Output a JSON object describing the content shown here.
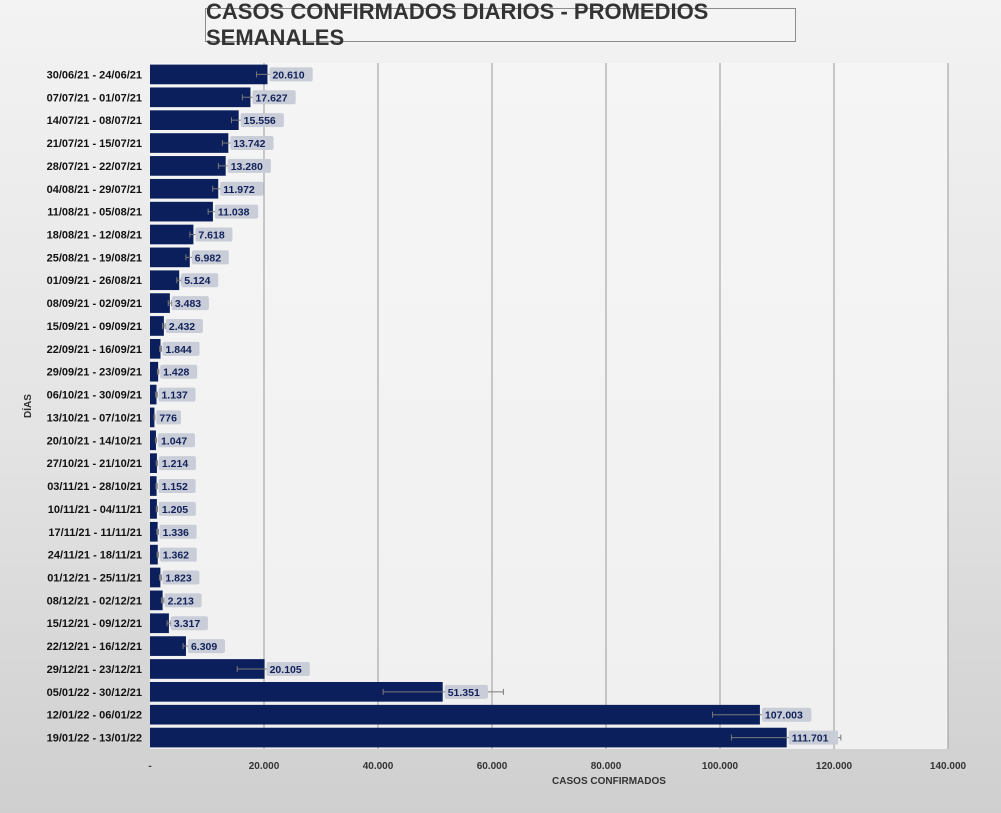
{
  "chart_data": {
    "type": "bar",
    "orientation": "horizontal",
    "title": "CASOS CONFIRMADOS DIARIOS - PROMEDIOS SEMANALES",
    "xlabel": "CASOS CONFIRMADOS",
    "ylabel": "DÍAS",
    "xlim": [
      0,
      140000
    ],
    "xticks": [
      0,
      20000,
      40000,
      60000,
      80000,
      100000,
      120000,
      140000
    ],
    "xtick_labels": [
      "-",
      "20.000",
      "40.000",
      "60.000",
      "80.000",
      "100.000",
      "120.000",
      "140.000"
    ],
    "grid": "vertical",
    "bar_color": "#0b1f5c",
    "categories": [
      "30/06/21 - 24/06/21",
      "07/07/21 - 01/07/21",
      "14/07/21 - 08/07/21",
      "21/07/21 - 15/07/21",
      "28/07/21 - 22/07/21",
      "04/08/21 - 29/07/21",
      "11/08/21 - 05/08/21",
      "18/08/21 - 12/08/21",
      "25/08/21 - 19/08/21",
      "01/09/21 - 26/08/21",
      "08/09/21 - 02/09/21",
      "15/09/21 - 09/09/21",
      "22/09/21 - 16/09/21",
      "29/09/21 - 23/09/21",
      "06/10/21 - 30/09/21",
      "13/10/21 - 07/10/21",
      "20/10/21 - 14/10/21",
      "27/10/21 - 21/10/21",
      "03/11/21 - 28/10/21",
      "10/11/21 - 04/11/21",
      "17/11/21 - 11/11/21",
      "24/11/21 - 18/11/21",
      "01/12/21 - 25/11/21",
      "08/12/21 - 02/12/21",
      "15/12/21 - 09/12/21",
      "22/12/21 - 16/12/21",
      "29/12/21 - 23/12/21",
      "05/01/22 - 30/12/21",
      "12/01/22 - 06/01/22",
      "19/01/22 - 13/01/22"
    ],
    "values": [
      20610,
      17627,
      15556,
      13742,
      13280,
      11972,
      11038,
      7618,
      6982,
      5124,
      3483,
      2432,
      1844,
      1428,
      1137,
      776,
      1047,
      1214,
      1152,
      1205,
      1336,
      1362,
      1823,
      2213,
      3317,
      6309,
      20105,
      51351,
      107003,
      111701
    ],
    "value_labels": [
      "20.610",
      "17.627",
      "15.556",
      "13.742",
      "13.280",
      "11.972",
      "11.038",
      "7.618",
      "6.982",
      "5.124",
      "3.483",
      "2.432",
      "1.844",
      "1.428",
      "1.137",
      "776",
      "1.047",
      "1.214",
      "1.152",
      "1.205",
      "1.336",
      "1.362",
      "1.823",
      "2.213",
      "3.317",
      "6.309",
      "20.105",
      "51.351",
      "107.003",
      "111.701"
    ],
    "error_low": [
      18700,
      16200,
      14300,
      12700,
      12000,
      11000,
      10200,
      7000,
      6300,
      4700,
      3200,
      2200,
      1700,
      1300,
      1000,
      700,
      950,
      1100,
      1050,
      1100,
      1200,
      1250,
      1650,
      2000,
      3000,
      5800,
      15300,
      40900,
      98700,
      102000
    ],
    "error_high": [
      22400,
      19000,
      16800,
      14700,
      14500,
      12900,
      11900,
      8200,
      7600,
      5500,
      3800,
      2650,
      2000,
      1550,
      1270,
      850,
      1150,
      1330,
      1260,
      1320,
      1470,
      1480,
      2000,
      2430,
      3650,
      6800,
      24900,
      62000,
      115900,
      121200
    ]
  }
}
